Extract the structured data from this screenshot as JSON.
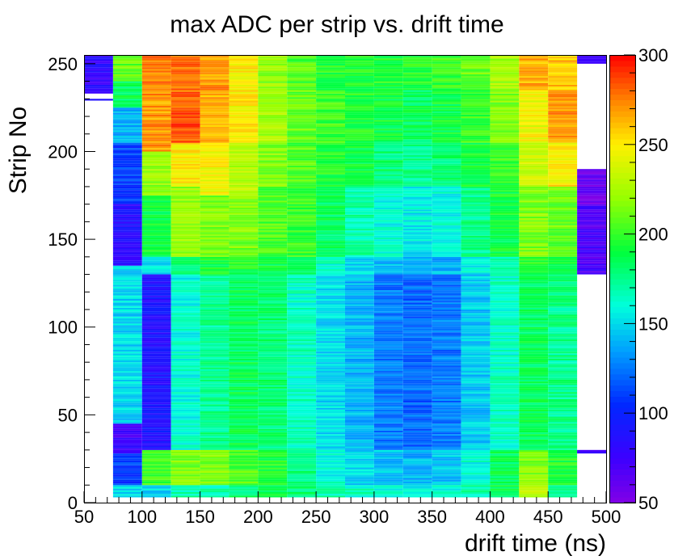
{
  "chart_data": {
    "type": "heatmap",
    "title": "max ADC per strip vs. drift time",
    "xlabel": "drift time (ns)",
    "ylabel": "Strip No",
    "xlim": [
      50,
      500
    ],
    "ylim": [
      0,
      255
    ],
    "zlim": [
      50,
      300
    ],
    "x_ticks": [
      "50",
      "100",
      "150",
      "200",
      "250",
      "300",
      "350",
      "400",
      "450",
      "500"
    ],
    "y_ticks": [
      "0",
      "50",
      "100",
      "150",
      "200",
      "250"
    ],
    "z_ticks": [
      "50",
      "100",
      "150",
      "200",
      "250",
      "300"
    ],
    "x_bin_edges": [
      50,
      75,
      100,
      125,
      150,
      175,
      200,
      225,
      250,
      275,
      300,
      325,
      350,
      375,
      400,
      425,
      450,
      475,
      500
    ],
    "columns": [
      {
        "x": [
          50,
          75
        ],
        "profile": [
          [
            229,
            230,
            85
          ],
          [
            233,
            255,
            80
          ]
        ]
      },
      {
        "x": [
          75,
          100
        ],
        "profile": [
          [
            3,
            10,
            150
          ],
          [
            10,
            28,
            110
          ],
          [
            28,
            45,
            75
          ],
          [
            45,
            66,
            150
          ],
          [
            66,
            80,
            150
          ],
          [
            80,
            95,
            150
          ],
          [
            95,
            120,
            150
          ],
          [
            120,
            135,
            150
          ],
          [
            135,
            170,
            85
          ],
          [
            170,
            205,
            110
          ],
          [
            205,
            225,
            140
          ],
          [
            225,
            240,
            185
          ],
          [
            240,
            255,
            210
          ]
        ]
      },
      {
        "x": [
          100,
          125
        ],
        "profile": [
          [
            3,
            10,
            150
          ],
          [
            10,
            30,
            200
          ],
          [
            30,
            130,
            90
          ],
          [
            130,
            140,
            150
          ],
          [
            140,
            175,
            190
          ],
          [
            175,
            200,
            220
          ],
          [
            200,
            235,
            270
          ],
          [
            235,
            255,
            275
          ]
        ]
      },
      {
        "x": [
          125,
          150
        ],
        "profile": [
          [
            3,
            10,
            170
          ],
          [
            10,
            30,
            215
          ],
          [
            30,
            130,
            160
          ],
          [
            130,
            140,
            180
          ],
          [
            140,
            180,
            220
          ],
          [
            180,
            205,
            250
          ],
          [
            205,
            230,
            285
          ],
          [
            230,
            255,
            280
          ]
        ]
      },
      {
        "x": [
          150,
          175
        ],
        "profile": [
          [
            3,
            10,
            170
          ],
          [
            10,
            30,
            215
          ],
          [
            30,
            130,
            175
          ],
          [
            130,
            140,
            190
          ],
          [
            140,
            175,
            215
          ],
          [
            175,
            205,
            245
          ],
          [
            205,
            235,
            265
          ],
          [
            235,
            255,
            270
          ]
        ]
      },
      {
        "x": [
          175,
          200
        ],
        "profile": [
          [
            3,
            10,
            180
          ],
          [
            10,
            30,
            205
          ],
          [
            30,
            130,
            185
          ],
          [
            130,
            140,
            195
          ],
          [
            140,
            175,
            215
          ],
          [
            175,
            205,
            230
          ],
          [
            205,
            235,
            250
          ],
          [
            235,
            255,
            250
          ]
        ]
      },
      {
        "x": [
          200,
          225
        ],
        "profile": [
          [
            3,
            10,
            185
          ],
          [
            10,
            30,
            195
          ],
          [
            30,
            130,
            180
          ],
          [
            130,
            140,
            190
          ],
          [
            140,
            180,
            205
          ],
          [
            180,
            205,
            215
          ],
          [
            205,
            235,
            225
          ],
          [
            235,
            255,
            220
          ]
        ]
      },
      {
        "x": [
          225,
          250
        ],
        "profile": [
          [
            3,
            10,
            180
          ],
          [
            10,
            30,
            180
          ],
          [
            30,
            130,
            165
          ],
          [
            130,
            140,
            180
          ],
          [
            140,
            180,
            200
          ],
          [
            180,
            205,
            205
          ],
          [
            205,
            235,
            210
          ],
          [
            235,
            255,
            205
          ]
        ]
      },
      {
        "x": [
          250,
          275
        ],
        "profile": [
          [
            3,
            10,
            170
          ],
          [
            10,
            30,
            160
          ],
          [
            30,
            130,
            150
          ],
          [
            130,
            140,
            165
          ],
          [
            140,
            180,
            185
          ],
          [
            180,
            205,
            195
          ],
          [
            205,
            235,
            200
          ],
          [
            235,
            255,
            195
          ]
        ]
      },
      {
        "x": [
          275,
          300
        ],
        "profile": [
          [
            3,
            10,
            165
          ],
          [
            10,
            30,
            150
          ],
          [
            30,
            130,
            140
          ],
          [
            130,
            140,
            150
          ],
          [
            140,
            180,
            170
          ],
          [
            180,
            205,
            190
          ],
          [
            205,
            235,
            195
          ],
          [
            235,
            255,
            195
          ]
        ]
      },
      {
        "x": [
          300,
          325
        ],
        "profile": [
          [
            3,
            10,
            160
          ],
          [
            10,
            30,
            145
          ],
          [
            30,
            130,
            125
          ],
          [
            130,
            140,
            140
          ],
          [
            140,
            180,
            160
          ],
          [
            180,
            205,
            180
          ],
          [
            205,
            235,
            190
          ],
          [
            235,
            255,
            195
          ]
        ]
      },
      {
        "x": [
          325,
          350
        ],
        "profile": [
          [
            3,
            10,
            155
          ],
          [
            10,
            30,
            140
          ],
          [
            30,
            130,
            120
          ],
          [
            130,
            140,
            135
          ],
          [
            140,
            180,
            155
          ],
          [
            180,
            205,
            175
          ],
          [
            205,
            235,
            185
          ],
          [
            235,
            255,
            195
          ]
        ]
      },
      {
        "x": [
          350,
          375
        ],
        "profile": [
          [
            3,
            10,
            160
          ],
          [
            10,
            30,
            145
          ],
          [
            30,
            130,
            125
          ],
          [
            130,
            140,
            140
          ],
          [
            140,
            180,
            160
          ],
          [
            180,
            205,
            180
          ],
          [
            205,
            235,
            190
          ],
          [
            235,
            255,
            200
          ]
        ]
      },
      {
        "x": [
          375,
          400
        ],
        "profile": [
          [
            3,
            10,
            170
          ],
          [
            10,
            30,
            160
          ],
          [
            30,
            130,
            145
          ],
          [
            130,
            140,
            155
          ],
          [
            140,
            180,
            175
          ],
          [
            180,
            205,
            190
          ],
          [
            205,
            235,
            200
          ],
          [
            235,
            255,
            210
          ]
        ]
      },
      {
        "x": [
          400,
          425
        ],
        "profile": [
          [
            3,
            10,
            185
          ],
          [
            10,
            30,
            185
          ],
          [
            30,
            130,
            165
          ],
          [
            130,
            140,
            170
          ],
          [
            140,
            180,
            190
          ],
          [
            180,
            205,
            200
          ],
          [
            205,
            235,
            215
          ],
          [
            235,
            255,
            225
          ]
        ]
      },
      {
        "x": [
          425,
          450
        ],
        "profile": [
          [
            3,
            10,
            230
          ],
          [
            10,
            30,
            215
          ],
          [
            30,
            130,
            185
          ],
          [
            130,
            140,
            195
          ],
          [
            140,
            180,
            215
          ],
          [
            180,
            205,
            235
          ],
          [
            205,
            235,
            245
          ],
          [
            235,
            255,
            265
          ]
        ]
      },
      {
        "x": [
          450,
          475
        ],
        "profile": [
          [
            3,
            10,
            175
          ],
          [
            10,
            30,
            195
          ],
          [
            30,
            130,
            175
          ],
          [
            130,
            140,
            190
          ],
          [
            140,
            180,
            210
          ],
          [
            180,
            205,
            250
          ],
          [
            205,
            235,
            270
          ],
          [
            235,
            255,
            260
          ]
        ]
      },
      {
        "x": [
          475,
          500
        ],
        "profile": [
          [
            28,
            30,
            75
          ],
          [
            130,
            170,
            70
          ],
          [
            170,
            190,
            60
          ],
          [
            250,
            255,
            80
          ]
        ]
      }
    ]
  }
}
